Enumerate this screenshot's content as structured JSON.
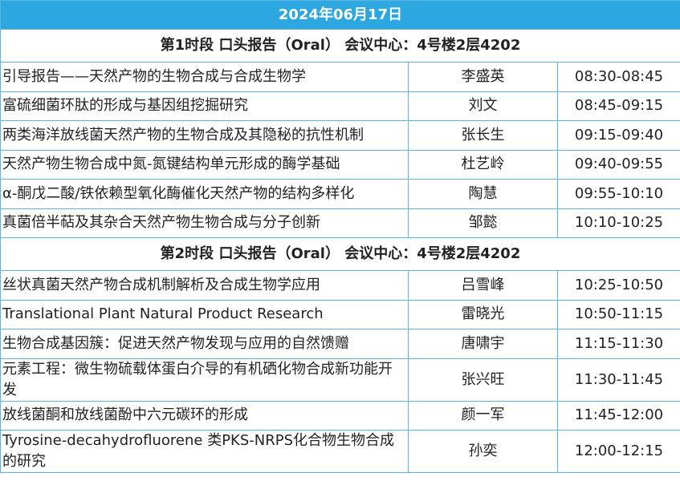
{
  "header": {
    "title": "2024年06月17日"
  },
  "sections": [
    {
      "title": "第1时段 口头报告（Oral） 会议中心：4号楼2层4202",
      "rows": [
        [
          "引导报告——天然产物的生物合成与合成生物学",
          "李盛英",
          "08:30-08:45"
        ],
        [
          "富硫细菌环肽的形成与基因组挖掘研究",
          "刘文",
          "08:45-09:15"
        ],
        [
          "两类海洋放线菌天然产物的生物合成及其隐秘的抗性机制",
          "张长生",
          "09:15-09:40"
        ],
        [
          "天然产物生物合成中氮-氮键结构单元形成的酶学基础",
          "杜艺岭",
          "09:40-09:55"
        ],
        [
          "α-酮戊二酸/铁依赖型氧化酶催化天然产物的结构多样化",
          "陶慧",
          "09:55-10:10"
        ],
        [
          "真菌倍半萜及其杂合天然产物生物合成与分子创新",
          "邹懿",
          "10:10-10:25"
        ]
      ]
    },
    {
      "title": "第2时段 口头报告（Oral） 会议中心：4号楼2层4202",
      "rows": [
        [
          "丝状真菌天然产物合成机制解析及合成生物学应用",
          "吕雪峰",
          "10:25-10:50"
        ],
        [
          "Translational Plant Natural Product Research",
          "雷晓光",
          "10:50-11:15"
        ],
        [
          "生物合成基因簇：促进天然产物发现与应用的自然馈赠",
          "唐啸宇",
          "11:15-11:30"
        ],
        [
          "元素工程：微生物硫载体蛋白介导的有机硒化物合成新功能开发",
          "张兴旺",
          "11:30-11:45"
        ],
        [
          "放线菌酮和放线菌酚中六元碳环的形成",
          "颜一军",
          "11:45-12:00"
        ],
        [
          "Tyrosine-decahydrofluorene 类PKS-NRPS化合物生物合成的研究",
          "孙奕",
          "12:00-12:15"
        ]
      ]
    }
  ]
}
